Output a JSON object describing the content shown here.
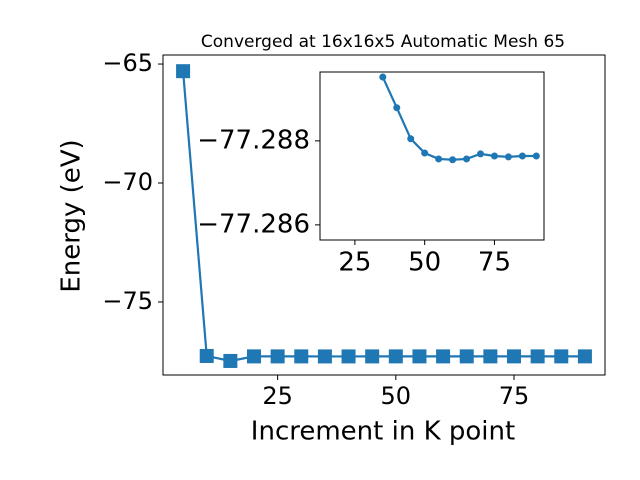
{
  "chart_data": [
    {
      "type": "line",
      "title": "Converged at 16x16x5 Automatic Mesh 65",
      "x_label": "Increment in K point",
      "y_label": "Energy (eV)",
      "marker": "square",
      "color": "#1f77b4",
      "x": [
        5,
        10,
        15,
        20,
        25,
        30,
        35,
        40,
        45,
        50,
        55,
        60,
        65,
        70,
        75,
        80,
        85,
        90
      ],
      "values": [
        -65.3,
        -77.27,
        -77.48,
        -77.288,
        -77.288,
        -77.288,
        -77.2895,
        -77.2888,
        -77.2881,
        -77.2877,
        -77.2876,
        -77.2876,
        -77.2876,
        -77.2877,
        -77.2876,
        -77.2876,
        -77.2876,
        -77.2876
      ],
      "xlim": [
        0.75,
        94.25
      ],
      "ylim": [
        -78.07,
        -64.62
      ],
      "xticks": [
        25,
        50,
        75
      ],
      "yticks": [
        {
          "value": -75,
          "label": "−75"
        },
        {
          "value": -70,
          "label": "−70"
        },
        {
          "value": -65,
          "label": "−65"
        }
      ]
    },
    {
      "type": "line",
      "marker": "circle",
      "color": "#1f77b4",
      "x": [
        35,
        40,
        45,
        50,
        55,
        60,
        65,
        70,
        75,
        80,
        85,
        90
      ],
      "values": [
        -77.28952,
        -77.28879,
        -77.28805,
        -77.28771,
        -77.28757,
        -77.28755,
        -77.28757,
        -77.28769,
        -77.28764,
        -77.28762,
        -77.28764,
        -77.28764
      ],
      "xlim": [
        12.5,
        92.75
      ],
      "ylim": [
        -77.28564,
        -77.28964
      ],
      "xticks": [
        25,
        50,
        75
      ],
      "yticks": [
        {
          "value": -77.288,
          "label": "−77.288"
        },
        {
          "value": -77.286,
          "label": "−77.286"
        }
      ]
    }
  ]
}
